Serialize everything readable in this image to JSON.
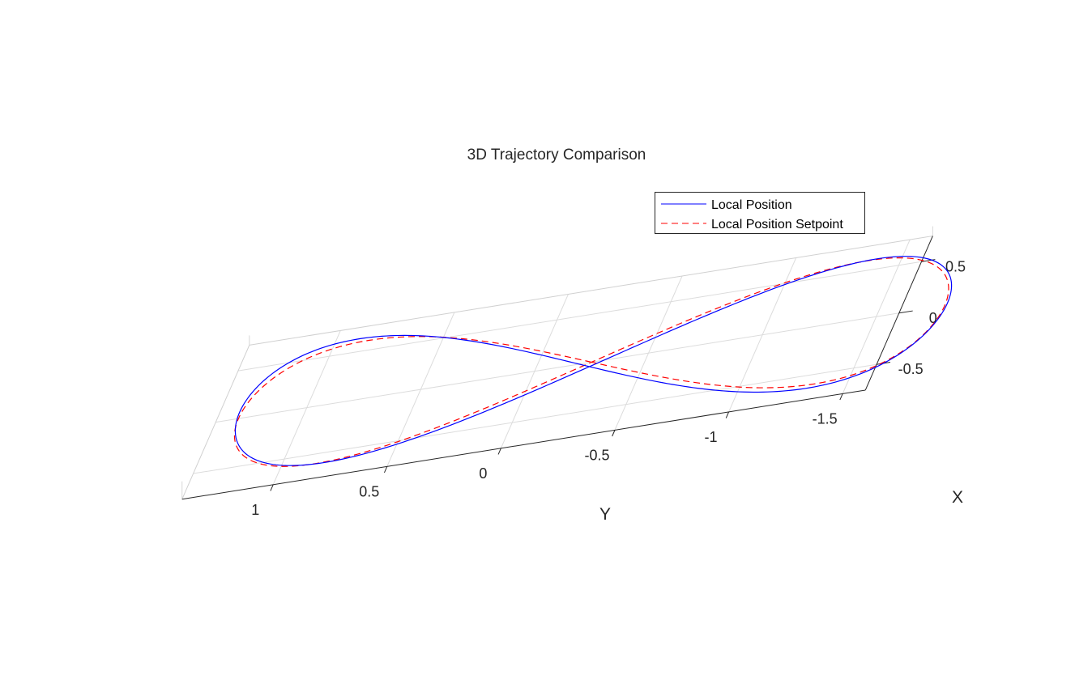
{
  "chart_data": {
    "type": "line",
    "title": "3D Trajectory Comparison",
    "xlabel": "X",
    "ylabel": "Y",
    "zlabel": "",
    "xlim": [
      -0.75,
      0.75
    ],
    "ylim": [
      -1.6,
      1.4
    ],
    "x_ticks": [
      {
        "value": 0.5,
        "label": "0.5"
      },
      {
        "value": 0,
        "label": "0"
      },
      {
        "value": -0.5,
        "label": "-0.5"
      }
    ],
    "y_ticks": [
      {
        "value": 1,
        "label": "1"
      },
      {
        "value": 0.5,
        "label": "0.5"
      },
      {
        "value": 0,
        "label": "0"
      },
      {
        "value": -0.5,
        "label": "-0.5"
      },
      {
        "value": -1,
        "label": "-1"
      },
      {
        "value": -1.5,
        "label": "-1.5"
      }
    ],
    "grid": true,
    "legend_position": "top-right",
    "series": [
      {
        "name": "Local Position",
        "color": "#0000ff",
        "style": "solid"
      },
      {
        "name": "Local Position Setpoint",
        "color": "#ff0000",
        "style": "dashed"
      }
    ],
    "trajectory_model": {
      "shape": "figure-eight",
      "y_center": -0.25,
      "y_amplitude": 1.55,
      "x_amplitude": 0.6
    }
  }
}
